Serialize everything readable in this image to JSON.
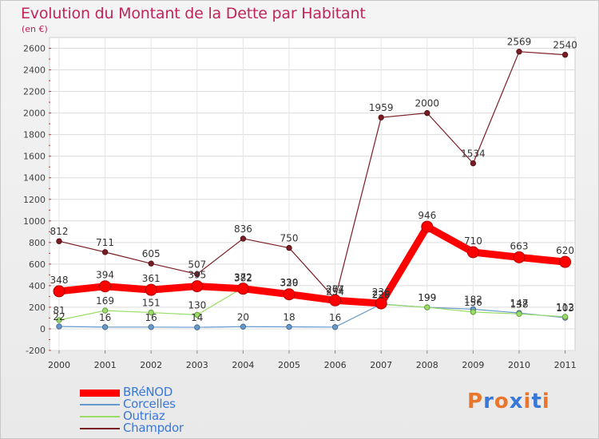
{
  "header": {
    "title": "Evolution du Montant de la Dette par Habitant",
    "unit": "(en €)"
  },
  "logo": {
    "text": "Proxiti",
    "colors": [
      "#e8762c",
      "#3a78d8",
      "#e8762c",
      "#3a78d8",
      "#e8762c",
      "#3a78d8",
      "#e8762c"
    ]
  },
  "chart_data": {
    "type": "line",
    "title": "Evolution du Montant de la Dette par Habitant",
    "subtitle": "(en €)",
    "xlabel": "",
    "ylabel": "",
    "x": [
      "2000",
      "2001",
      "2002",
      "2003",
      "2004",
      "2005",
      "2006",
      "2007",
      "2008",
      "2009",
      "2010",
      "2011"
    ],
    "ylim": [
      -200,
      2700
    ],
    "yticks": [
      -200,
      0,
      200,
      400,
      600,
      800,
      1000,
      1200,
      1400,
      1600,
      1800,
      2000,
      2200,
      2400,
      2600
    ],
    "grid": true,
    "legend_position": "bottom-left",
    "series": [
      {
        "name": "BRéNOD",
        "color": "#ff0000",
        "width": 9,
        "values": [
          348,
          394,
          361,
          395,
          372,
          320,
          264,
          236,
          946,
          710,
          663,
          620
        ]
      },
      {
        "name": "Corcelles",
        "color": "#6699cc",
        "width": 1.2,
        "values": [
          22,
          16,
          16,
          14,
          20,
          18,
          16,
          229,
          199,
          182,
          147,
          103
        ]
      },
      {
        "name": "Outriaz",
        "color": "#99dd66",
        "width": 1.2,
        "values": [
          81,
          169,
          151,
          130,
          382,
          339,
          254,
          226,
          199,
          156,
          138,
          112
        ]
      },
      {
        "name": "Champdor",
        "color": "#7a1c24",
        "width": 1.2,
        "values": [
          812,
          711,
          605,
          507,
          836,
          750,
          277,
          1959,
          2000,
          1534,
          2569,
          2540
        ]
      }
    ]
  }
}
